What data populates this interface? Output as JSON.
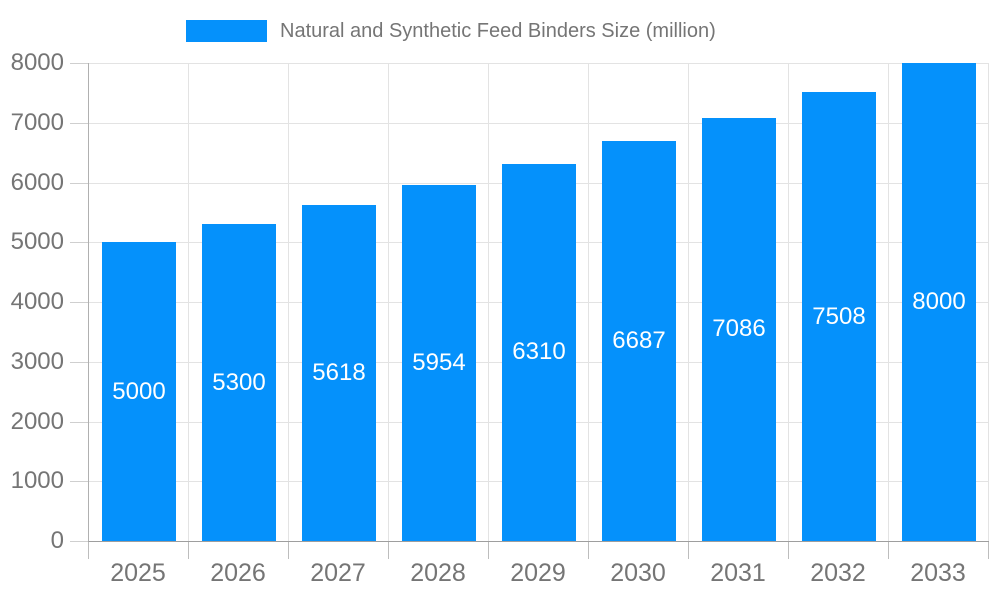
{
  "chart_data": {
    "type": "bar",
    "title": "Natural and Synthetic Feed Binders Size (million)",
    "categories": [
      "2025",
      "2026",
      "2027",
      "2028",
      "2029",
      "2030",
      "2031",
      "2032",
      "2033"
    ],
    "values": [
      5000,
      5300,
      5618,
      5954,
      6310,
      6687,
      7086,
      7508,
      8000
    ],
    "series_name": "Natural and Synthetic Feed Binders Size (million)",
    "xlabel": "",
    "ylabel": "",
    "ylim": [
      0,
      8000
    ],
    "ytick_step": 1000,
    "y_ticks": [
      0,
      1000,
      2000,
      3000,
      4000,
      5000,
      6000,
      7000,
      8000
    ],
    "grid": true,
    "legend_position": "top",
    "data_labels": true,
    "colors": {
      "bar": "#0591FB",
      "bar_label_text": "#ffffff",
      "axis_text": "#757575",
      "gridline": "#e3e3e3",
      "y_axis_line": "#b0b0b0",
      "x_axis_line": "#9e9e9e",
      "background": "#ffffff"
    }
  }
}
